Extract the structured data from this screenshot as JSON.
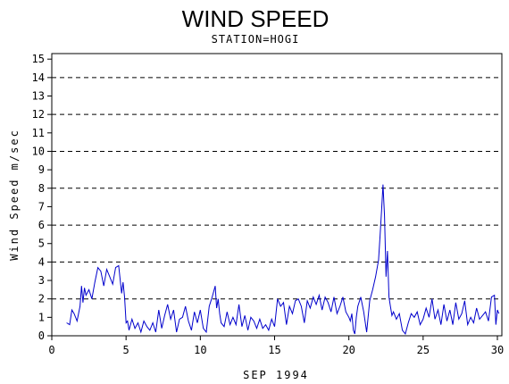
{
  "chart_data": {
    "type": "line",
    "title": "WIND SPEED",
    "subtitle": "STATION=HOGI",
    "xlabel": "SEP 1994",
    "ylabel": "Wind Speed m/sec",
    "xlim": [
      0,
      30.3
    ],
    "ylim": [
      0,
      15.3
    ],
    "x_ticks": [
      0,
      5,
      10,
      15,
      20,
      25,
      30
    ],
    "y_ticks": [
      0,
      1,
      2,
      3,
      4,
      5,
      6,
      7,
      8,
      9,
      10,
      11,
      12,
      13,
      14,
      15
    ],
    "reference_lines": [
      2,
      4,
      6,
      8,
      10,
      12,
      14
    ],
    "line_color": "#0000cc",
    "series": [
      {
        "x": [
          1.0,
          1.2,
          1.35,
          1.5,
          1.7,
          1.9,
          2.0,
          2.1,
          2.2,
          2.3,
          2.5,
          2.7,
          2.9,
          3.1,
          3.3,
          3.5,
          3.7,
          3.9,
          4.1,
          4.3,
          4.5,
          4.7,
          4.8,
          4.9,
          5.0,
          5.1,
          5.2,
          5.4,
          5.6,
          5.8,
          6.0,
          6.2,
          6.4,
          6.6,
          6.8,
          7.0,
          7.2,
          7.4,
          7.6,
          7.8,
          8.0,
          8.2,
          8.4,
          8.6,
          8.8,
          9.0,
          9.2,
          9.4,
          9.6,
          9.8,
          10.0,
          10.2,
          10.4,
          10.6,
          10.8,
          11.0,
          11.1,
          11.2,
          11.3,
          11.4,
          11.6,
          11.8,
          12.0,
          12.2,
          12.4,
          12.6,
          12.8,
          13.0,
          13.2,
          13.4,
          13.6,
          13.8,
          14.0,
          14.2,
          14.4,
          14.6,
          14.8,
          15.0,
          15.2,
          15.4,
          15.6,
          15.8,
          16.0,
          16.2,
          16.4,
          16.6,
          16.8,
          17.0,
          17.2,
          17.4,
          17.6,
          17.8,
          18.0,
          18.2,
          18.4,
          18.6,
          18.8,
          19.0,
          19.2,
          19.4,
          19.6,
          19.8,
          20.0,
          20.1,
          20.2,
          20.3,
          20.4,
          20.5,
          20.6,
          20.8,
          21.0,
          21.2,
          21.4,
          21.6,
          21.8,
          22.0,
          22.1,
          22.2,
          22.3,
          22.4,
          22.5,
          22.6,
          22.7,
          22.8,
          22.9,
          23.0,
          23.2,
          23.4,
          23.6,
          23.8,
          24.0,
          24.2,
          24.4,
          24.6,
          24.8,
          25.0,
          25.2,
          25.4,
          25.6,
          25.8,
          26.0,
          26.2,
          26.4,
          26.6,
          26.8,
          27.0,
          27.2,
          27.4,
          27.6,
          27.8,
          28.0,
          28.2,
          28.4,
          28.6,
          28.8,
          29.0,
          29.2,
          29.4,
          29.6,
          29.8,
          29.9,
          30.0,
          30.1
        ],
        "y": [
          0.7,
          0.6,
          1.4,
          1.2,
          0.8,
          1.6,
          2.7,
          1.8,
          2.6,
          2.2,
          2.5,
          2.0,
          2.9,
          3.7,
          3.5,
          2.7,
          3.6,
          3.2,
          2.8,
          3.7,
          3.8,
          2.3,
          2.9,
          2.1,
          0.7,
          0.8,
          0.3,
          0.9,
          0.4,
          0.7,
          0.2,
          0.8,
          0.5,
          0.3,
          0.7,
          0.2,
          1.4,
          0.4,
          1.1,
          1.7,
          0.9,
          1.4,
          0.2,
          0.9,
          1.0,
          1.6,
          0.8,
          0.3,
          1.3,
          0.7,
          1.4,
          0.4,
          0.2,
          1.6,
          2.1,
          2.7,
          1.5,
          2.0,
          1.2,
          0.7,
          0.5,
          1.3,
          0.6,
          1.0,
          0.6,
          1.7,
          0.5,
          1.1,
          0.3,
          1.0,
          0.8,
          0.4,
          0.9,
          0.4,
          0.6,
          0.3,
          0.9,
          0.5,
          2.0,
          1.6,
          1.8,
          0.6,
          1.6,
          1.2,
          1.9,
          2.0,
          1.6,
          0.7,
          1.9,
          1.5,
          2.1,
          1.7,
          2.2,
          1.4,
          2.1,
          1.8,
          1.3,
          2.1,
          1.2,
          1.6,
          2.1,
          1.3,
          1.0,
          0.8,
          1.2,
          0.3,
          0.1,
          1.0,
          1.6,
          2.1,
          1.3,
          0.2,
          1.9,
          2.5,
          3.2,
          4.1,
          5.4,
          6.8,
          8.2,
          6.5,
          3.2,
          4.6,
          2.1,
          1.6,
          1.1,
          1.3,
          0.9,
          1.2,
          0.3,
          0.1,
          0.7,
          1.2,
          1.0,
          1.3,
          0.6,
          0.9,
          1.5,
          1.0,
          2.0,
          0.9,
          1.4,
          0.6,
          1.7,
          0.8,
          1.4,
          0.6,
          1.8,
          0.9,
          1.2,
          1.9,
          0.6,
          1.0,
          0.7,
          1.5,
          0.9,
          1.1,
          1.3,
          0.8,
          2.1,
          2.2,
          0.6,
          1.4,
          1.2
        ]
      }
    ]
  }
}
